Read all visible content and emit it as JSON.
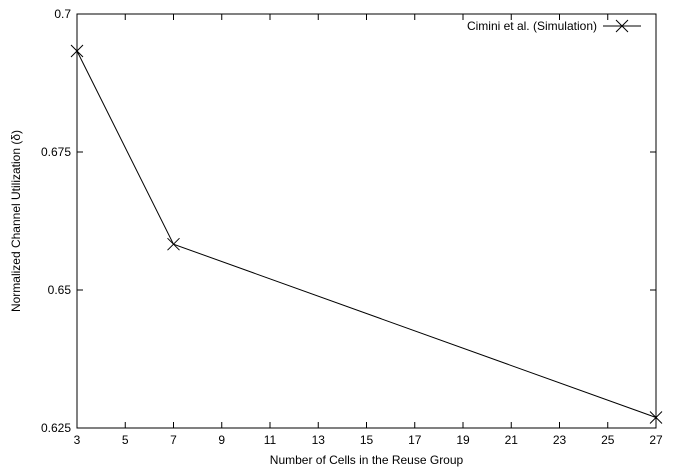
{
  "chart_data": {
    "type": "line",
    "title": "",
    "xlabel": "Number of Cells in the Reuse Group",
    "ylabel": "Normalized Channel Utilization (δ)",
    "xlim": [
      3,
      27
    ],
    "ylim": [
      0.625,
      0.7
    ],
    "xticks": [
      3,
      5,
      7,
      9,
      11,
      13,
      15,
      17,
      19,
      21,
      23,
      25,
      27
    ],
    "yticks": [
      0.625,
      0.65,
      0.675,
      0.7
    ],
    "ytick_labels": [
      "0.625",
      "0.65",
      "0.675",
      "0.7"
    ],
    "grid": false,
    "legend_position": "top-right",
    "series": [
      {
        "name": "Cimini et al. (Simulation)",
        "marker": "x",
        "color": "#000000",
        "x": [
          3,
          7,
          27
        ],
        "y": [
          0.6933,
          0.6583,
          0.6269
        ]
      }
    ]
  }
}
